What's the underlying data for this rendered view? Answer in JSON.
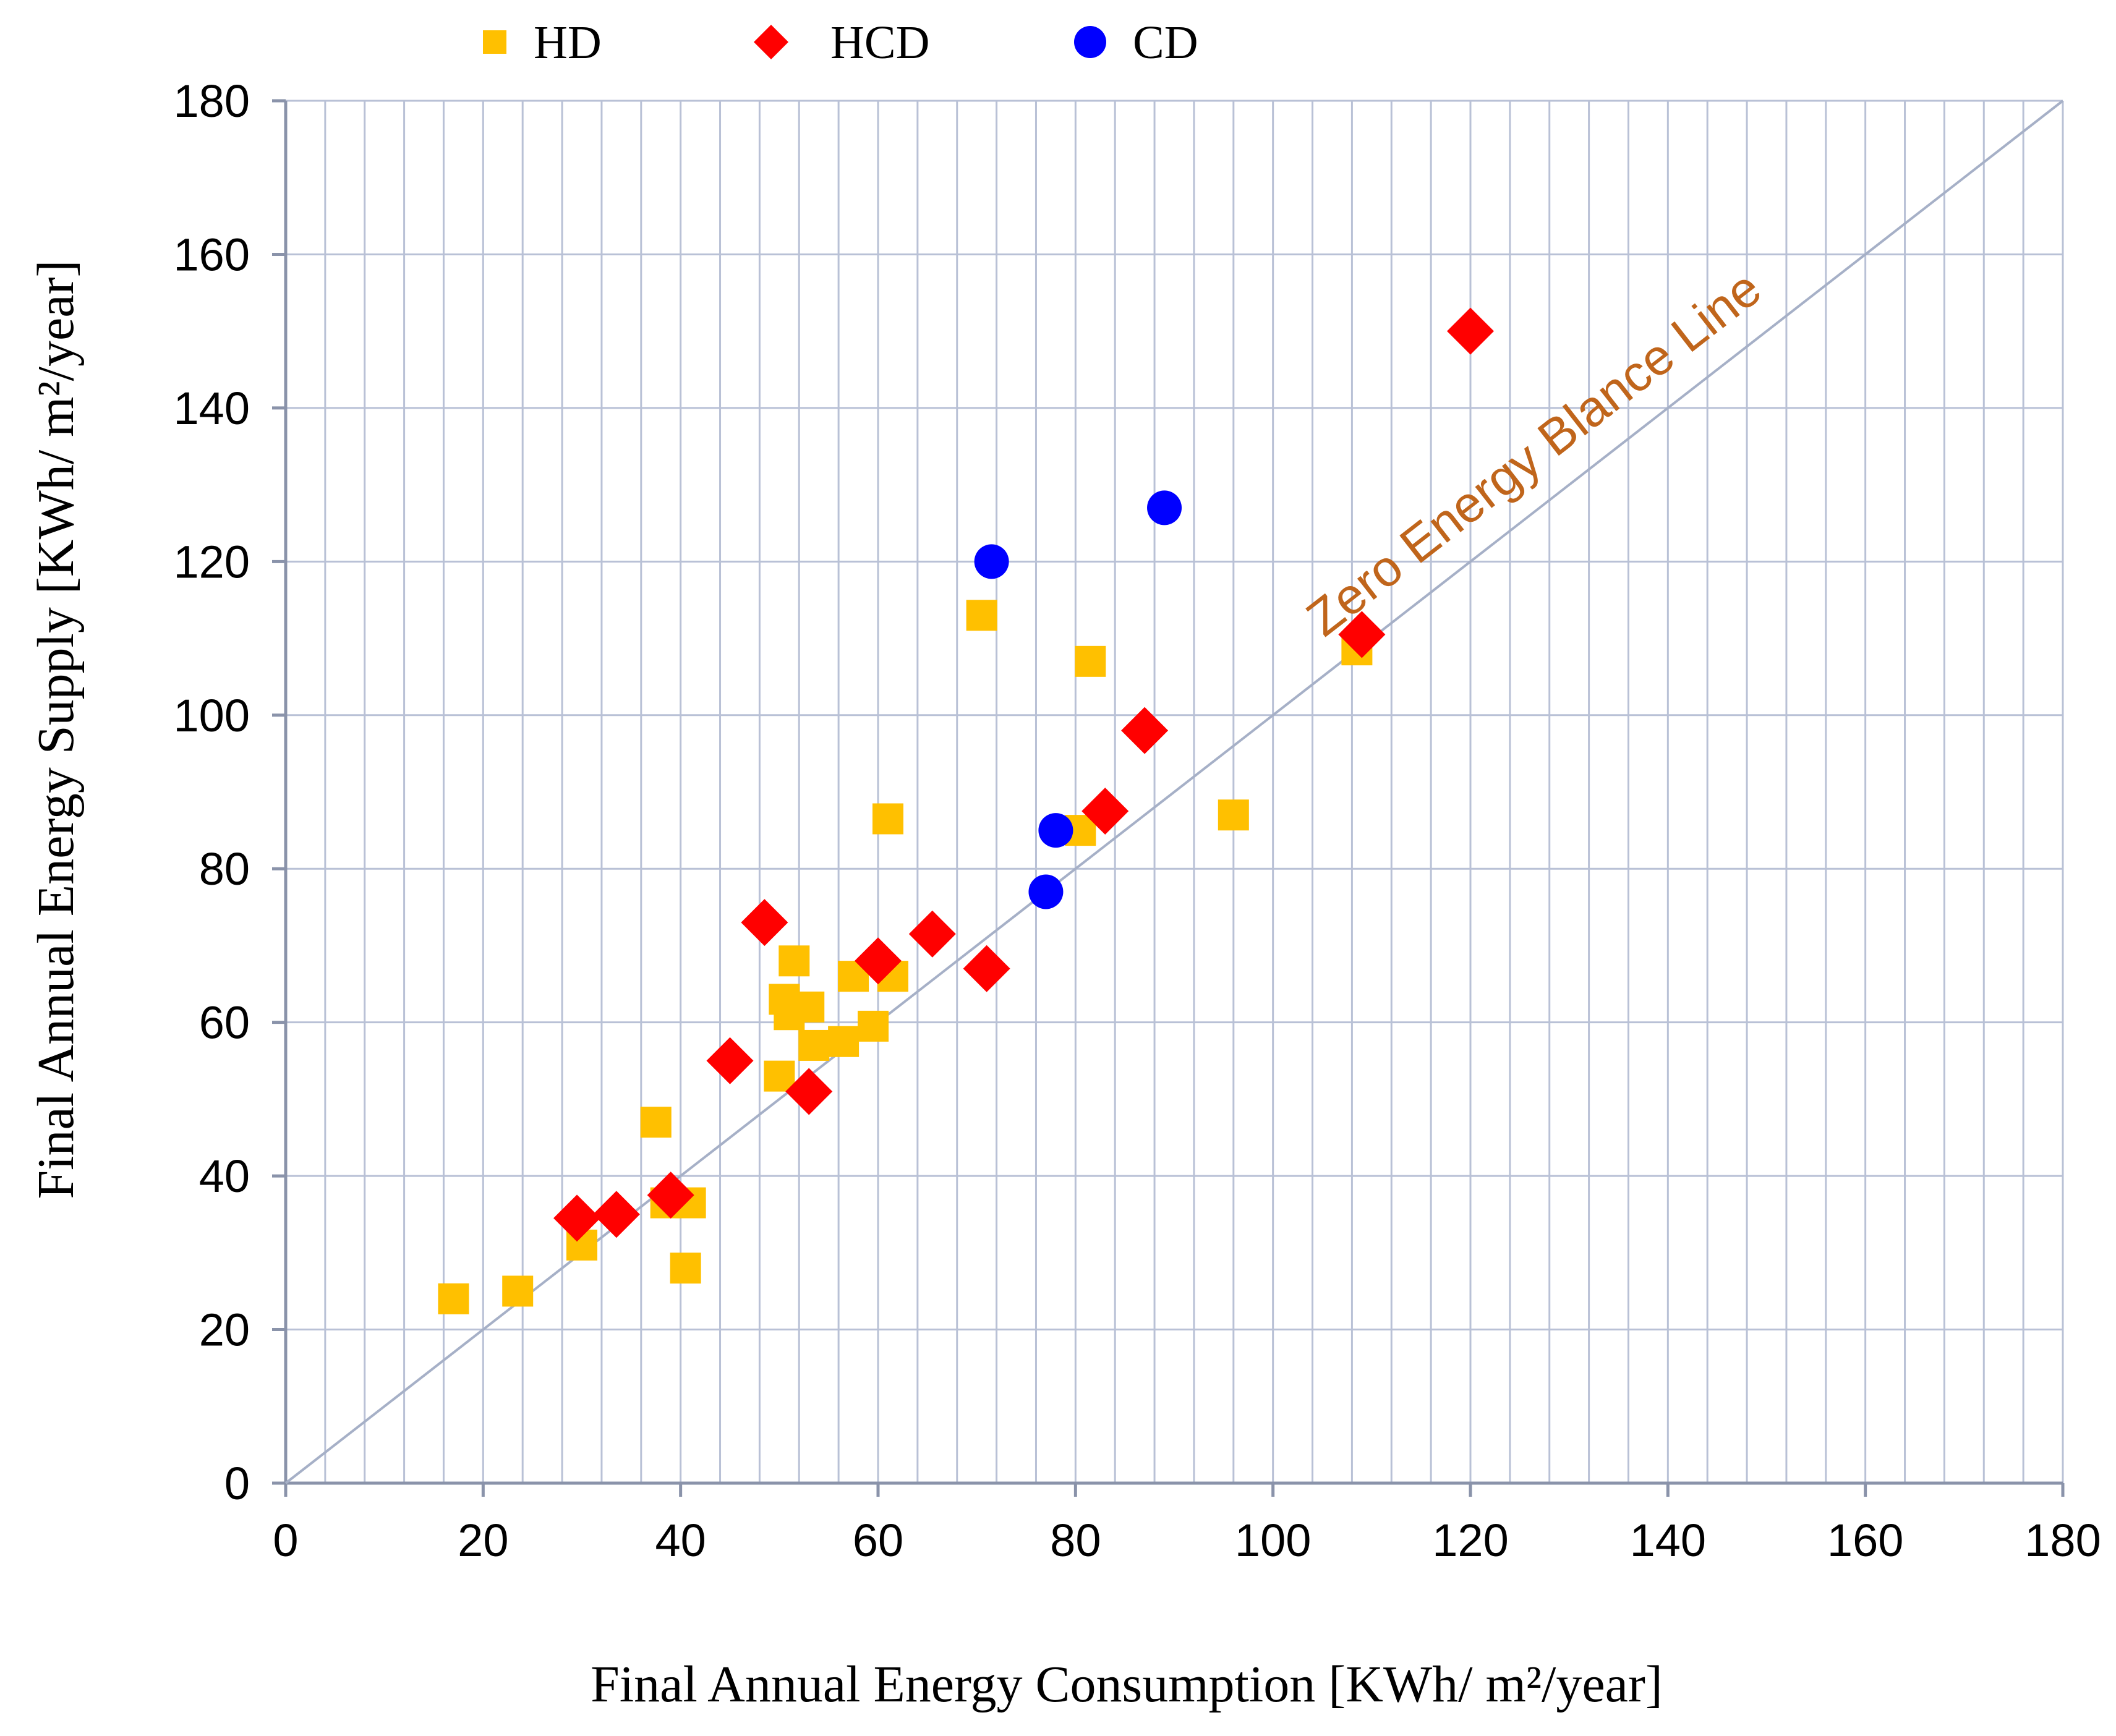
{
  "chart_data": {
    "type": "scatter",
    "title": "",
    "xlabel": "Final Annual Energy Consumption [KWh/ m²/year]",
    "ylabel": "Final Annual Energy Supply [KWh/ m²/year]",
    "xlim": [
      0,
      180
    ],
    "ylim": [
      0,
      180
    ],
    "x_ticks": [
      "0",
      "20",
      "40",
      "60",
      "80",
      "100",
      "120",
      "140",
      "160",
      "180"
    ],
    "y_ticks": [
      "0",
      "20",
      "40",
      "60",
      "80",
      "100",
      "120",
      "140",
      "160",
      "180"
    ],
    "legend_position": "top",
    "grid": {
      "vertical_every": 4,
      "horizontal_every": 20
    },
    "reference_line": {
      "label": "Zero Energy Blance Line",
      "from": [
        0,
        0
      ],
      "to": [
        180,
        180
      ],
      "color": "#a6b0c7",
      "label_color": "#c0651b"
    },
    "series": [
      {
        "name": "HD",
        "marker": "square",
        "color": "#ffc000",
        "points": [
          [
            17,
            24
          ],
          [
            23.5,
            25
          ],
          [
            30,
            31
          ],
          [
            37.5,
            47
          ],
          [
            38.5,
            36.5
          ],
          [
            41,
            36.5
          ],
          [
            40.5,
            28
          ],
          [
            50,
            53
          ],
          [
            50.5,
            63
          ],
          [
            51,
            61
          ],
          [
            51.5,
            68
          ],
          [
            53,
            62
          ],
          [
            53.5,
            57
          ],
          [
            56.5,
            57.5
          ],
          [
            57.5,
            66
          ],
          [
            59.5,
            59.5
          ],
          [
            61.5,
            66
          ],
          [
            61,
            86.5
          ],
          [
            70.5,
            113
          ],
          [
            80.5,
            85
          ],
          [
            81.5,
            107
          ],
          [
            96,
            87
          ],
          [
            108.5,
            108.5
          ]
        ]
      },
      {
        "name": "HCD",
        "marker": "diamond",
        "color": "#ff0000",
        "points": [
          [
            29.5,
            34.5
          ],
          [
            33.5,
            35
          ],
          [
            39,
            37.5
          ],
          [
            45,
            55
          ],
          [
            48.5,
            73
          ],
          [
            53,
            51
          ],
          [
            60,
            68
          ],
          [
            65.5,
            71.5
          ],
          [
            71,
            67
          ],
          [
            83,
            87.5
          ],
          [
            87,
            98
          ],
          [
            109,
            110.5
          ],
          [
            120,
            150
          ]
        ]
      },
      {
        "name": "CD",
        "marker": "circle",
        "color": "#0000ff",
        "points": [
          [
            71.5,
            120
          ],
          [
            77,
            77
          ],
          [
            78,
            85
          ],
          [
            89,
            127
          ]
        ]
      }
    ]
  }
}
